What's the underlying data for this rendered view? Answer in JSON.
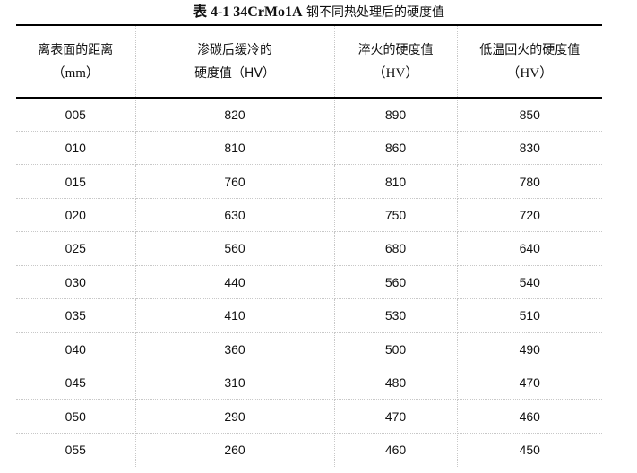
{
  "caption": {
    "prefix": "表 4-1 34CrMo1A",
    "suffix": " 钢不同热处理后的硬度值"
  },
  "table": {
    "headers": [
      {
        "line1": "离表面的距离",
        "line2": "（mm）"
      },
      {
        "line1": "渗碳后缓冷的",
        "line2": "硬度值（HV）"
      },
      {
        "line1": "淬火的硬度值",
        "line2": "（HV）"
      },
      {
        "line1": "低温回火的硬度值",
        "line2": "（HV）"
      }
    ],
    "rows": [
      [
        "005",
        "820",
        "890",
        "850"
      ],
      [
        "010",
        "810",
        "860",
        "830"
      ],
      [
        "015",
        "760",
        "810",
        "780"
      ],
      [
        "020",
        "630",
        "750",
        "720"
      ],
      [
        "025",
        "560",
        "680",
        "640"
      ],
      [
        "030",
        "440",
        "560",
        "540"
      ],
      [
        "035",
        "410",
        "530",
        "510"
      ],
      [
        "040",
        "360",
        "500",
        "490"
      ],
      [
        "045",
        "310",
        "480",
        "470"
      ],
      [
        "050",
        "290",
        "470",
        "460"
      ],
      [
        "055",
        "260",
        "460",
        "450"
      ]
    ]
  }
}
